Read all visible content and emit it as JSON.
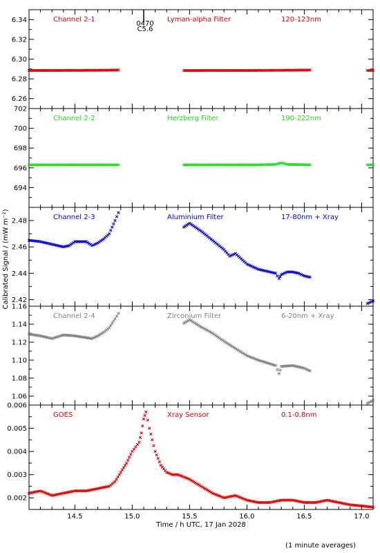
{
  "ylabel": "Calibrated Signal / (mW m⁻²)",
  "xlabel": "Time / h UTC, 17 Jan 2028",
  "footnote": "(1 minute averages)",
  "marker": {
    "line1": "0470",
    "line2": "C5.6",
    "x": 15.1
  },
  "xlim": [
    14.1,
    17.1
  ],
  "xticks": [
    14.5,
    15.0,
    15.5,
    16.0,
    16.5,
    17.0
  ],
  "xtick_labels": [
    "14.5",
    "15.0",
    "15.5",
    "16.0",
    "16.5",
    "17.0"
  ],
  "chart_data": [
    {
      "type": "scatter",
      "channel": "Channel 2-1",
      "filter": "Lyman-alpha Filter",
      "band": "120-123nm",
      "color": "#dd0000",
      "ylim": [
        6.25,
        6.35
      ],
      "yticks": [
        6.26,
        6.28,
        6.3,
        6.32,
        6.34
      ],
      "ytick_labels": [
        "6.26",
        "6.28",
        "6.30",
        "6.32",
        "6.34"
      ],
      "segments": [
        {
          "x": [
            14.1,
            14.3,
            14.5,
            14.7,
            14.88
          ],
          "y": [
            6.2885,
            6.2885,
            6.2886,
            6.2887,
            6.2889
          ]
        },
        {
          "x": [
            15.45,
            15.7,
            16.0,
            16.3,
            16.55
          ],
          "y": [
            6.2884,
            6.2885,
            6.2885,
            6.2887,
            6.2889
          ]
        },
        {
          "x": [
            17.05,
            17.1
          ],
          "y": [
            6.2885,
            6.2886
          ]
        }
      ]
    },
    {
      "type": "scatter",
      "channel": "Channel 2-2",
      "filter": "Herzberg Filter",
      "band": "190-222nm",
      "color": "#22dd22",
      "ylim": [
        692,
        702
      ],
      "yticks": [
        694,
        696,
        698,
        700,
        702
      ],
      "ytick_labels": [
        "694",
        "696",
        "698",
        "700",
        "702"
      ],
      "segments": [
        {
          "x": [
            14.1,
            14.3,
            14.5,
            14.7,
            14.88
          ],
          "y": [
            696.3,
            696.3,
            696.3,
            696.3,
            696.3
          ]
        },
        {
          "x": [
            15.45,
            15.8,
            16.1,
            16.25,
            16.3,
            16.35,
            16.55
          ],
          "y": [
            696.3,
            696.3,
            696.3,
            696.35,
            696.5,
            696.35,
            696.3
          ]
        },
        {
          "x": [
            17.05,
            17.1
          ],
          "y": [
            696.3,
            696.3
          ]
        }
      ]
    },
    {
      "type": "scatter",
      "channel": "Channel 2-3",
      "filter": "Aluminium Filter",
      "band": "17-80nm + Xray",
      "color": "#0000cc",
      "ylim": [
        2.415,
        2.49
      ],
      "yticks": [
        2.42,
        2.44,
        2.46,
        2.48
      ],
      "ytick_labels": [
        "2.42",
        "2.44",
        "2.46",
        "2.48"
      ],
      "segments": [
        {
          "x": [
            14.1,
            14.2,
            14.3,
            14.4,
            14.45,
            14.5,
            14.6,
            14.65,
            14.7,
            14.75,
            14.8,
            14.85,
            14.88
          ],
          "y": [
            2.465,
            2.464,
            2.462,
            2.46,
            2.461,
            2.464,
            2.464,
            2.461,
            2.463,
            2.466,
            2.47,
            2.48,
            2.486
          ]
        },
        {
          "x": [
            15.45,
            15.5,
            15.6,
            15.7,
            15.8,
            15.85,
            15.9,
            16.0,
            16.1,
            16.2,
            16.25,
            16.28,
            16.3,
            16.35,
            16.4,
            16.45,
            16.5,
            16.55
          ],
          "y": [
            2.475,
            2.478,
            2.472,
            2.465,
            2.458,
            2.453,
            2.455,
            2.447,
            2.443,
            2.441,
            2.44,
            2.436,
            2.439,
            2.441,
            2.441,
            2.44,
            2.438,
            2.437
          ]
        },
        {
          "x": [
            17.05,
            17.1
          ],
          "y": [
            2.417,
            2.419
          ]
        }
      ]
    },
    {
      "type": "scatter",
      "channel": "Channel 2-4",
      "filter": "Zirconium Filter",
      "band": "6-20nm + Xray",
      "color": "#808080",
      "ylim": [
        1.05,
        1.16
      ],
      "yticks": [
        1.06,
        1.08,
        1.1,
        1.12,
        1.14,
        1.16
      ],
      "ytick_labels": [
        "1.06",
        "1.08",
        "1.10",
        "1.12",
        "1.14",
        "1.16"
      ],
      "segments": [
        {
          "x": [
            14.1,
            14.2,
            14.3,
            14.4,
            14.5,
            14.6,
            14.65,
            14.7,
            14.75,
            14.8,
            14.85,
            14.88
          ],
          "y": [
            1.129,
            1.127,
            1.124,
            1.128,
            1.127,
            1.125,
            1.124,
            1.127,
            1.131,
            1.136,
            1.146,
            1.152
          ]
        },
        {
          "x": [
            15.45,
            15.5,
            15.6,
            15.7,
            15.8,
            15.9,
            16.0,
            16.1,
            16.2,
            16.25,
            16.28,
            16.3,
            16.4,
            16.5,
            16.55
          ],
          "y": [
            1.141,
            1.145,
            1.137,
            1.13,
            1.121,
            1.113,
            1.105,
            1.1,
            1.096,
            1.094,
            1.085,
            1.093,
            1.094,
            1.091,
            1.088
          ]
        },
        {
          "x": [
            17.05,
            17.1
          ],
          "y": [
            1.052,
            1.055
          ]
        }
      ]
    },
    {
      "type": "scatter",
      "channel": "GOES",
      "filter": "Xray Sensor",
      "band": "0.1-0.8nm",
      "color": "#dd0000",
      "ylim": [
        0.0015,
        0.006
      ],
      "yticks": [
        0.002,
        0.003,
        0.004,
        0.005,
        0.006
      ],
      "ytick_labels": [
        "0.002",
        "0.003",
        "0.004",
        "0.005",
        "0.006"
      ],
      "segments": [
        {
          "x": [
            14.1,
            14.2,
            14.3,
            14.4,
            14.5,
            14.6,
            14.7,
            14.8,
            14.85,
            14.9,
            14.95,
            15.0,
            15.03,
            15.06,
            15.08,
            15.1,
            15.12,
            15.15,
            15.2,
            15.25,
            15.3,
            15.35,
            15.4,
            15.5,
            15.6,
            15.7,
            15.8,
            15.9,
            16.0,
            16.1,
            16.2,
            16.3,
            16.4,
            16.5,
            16.6,
            16.7,
            16.8,
            16.9,
            17.0,
            17.1
          ],
          "y": [
            0.0022,
            0.0023,
            0.0021,
            0.0022,
            0.0023,
            0.0023,
            0.0024,
            0.0025,
            0.0027,
            0.0031,
            0.0035,
            0.004,
            0.0042,
            0.0044,
            0.0048,
            0.0054,
            0.0057,
            0.005,
            0.004,
            0.0034,
            0.0031,
            0.003,
            0.003,
            0.0028,
            0.0025,
            0.0022,
            0.002,
            0.0021,
            0.0019,
            0.0018,
            0.0018,
            0.0019,
            0.0019,
            0.0018,
            0.0018,
            0.0019,
            0.0018,
            0.0017,
            0.00165,
            0.0016
          ]
        }
      ]
    }
  ]
}
